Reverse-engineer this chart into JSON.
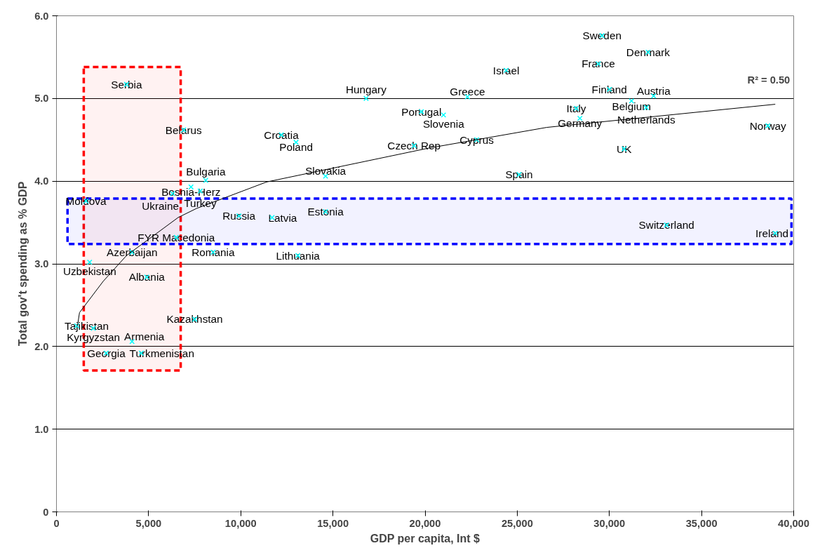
{
  "chart_data": {
    "type": "scatter",
    "xlabel": "GDP per capita, Int $",
    "ylabel": "Total gov't spending as % GDP",
    "xlim": [
      0,
      40000
    ],
    "ylim": [
      0,
      6
    ],
    "xticks": [
      0,
      {
        "value": 5000,
        "label": "5,000"
      },
      {
        "value": 10000,
        "label": "10,000"
      },
      {
        "value": 15000,
        "label": "15,000"
      },
      {
        "value": 20000,
        "label": "20,000"
      },
      {
        "value": 25000,
        "label": "25,000"
      },
      {
        "value": 30000,
        "label": "30,000"
      },
      {
        "value": 35000,
        "label": "35,000"
      },
      {
        "value": 40000,
        "label": "40,000"
      }
    ],
    "yticks": [
      0,
      {
        "value": 1,
        "label": "1.0"
      },
      {
        "value": 2,
        "label": "2.0"
      },
      {
        "value": 3,
        "label": "3.0"
      },
      {
        "value": 4,
        "label": "4.0"
      },
      {
        "value": 5,
        "label": "5.0"
      },
      {
        "value": 6,
        "label": "6.0"
      }
    ],
    "grid": "y",
    "marker": "cross",
    "series": [
      {
        "color": "#00ffff",
        "x": [
          3800,
          6900,
          8100,
          7300,
          7800,
          6300,
          1600,
          9900,
          6500,
          8500,
          4100,
          1800,
          4900,
          7500,
          1100,
          2000,
          4100,
          2700,
          4600,
          16800,
          22300,
          19800,
          21000,
          12200,
          13000,
          19400,
          22800,
          14600,
          25100,
          14600,
          11700,
          13100,
          29600,
          32100,
          29400,
          24400,
          30000,
          32400,
          31200,
          32000,
          28200,
          28400,
          38600,
          30800,
          33100,
          39000
        ],
        "values": [
          5.17,
          4.62,
          4.01,
          3.93,
          3.88,
          3.85,
          3.76,
          3.58,
          3.32,
          3.14,
          3.14,
          3.02,
          2.84,
          2.33,
          2.25,
          2.22,
          2.06,
          1.92,
          1.92,
          5.0,
          5.02,
          4.84,
          4.8,
          4.56,
          4.47,
          4.43,
          4.5,
          4.06,
          4.08,
          3.63,
          3.56,
          3.1,
          5.76,
          5.56,
          5.42,
          5.34,
          5.11,
          5.03,
          4.97,
          4.89,
          4.88,
          4.76,
          4.67,
          4.39,
          3.47,
          3.37
        ]
      },
      {
        "type": "line",
        "color": "#000000",
        "marker": "none",
        "x": [
          1140,
          1250,
          2540,
          3800,
          6600,
          7600,
          11400,
          20200,
          26600,
          39000
        ],
        "values": [
          2.25,
          2.41,
          2.79,
          3.1,
          3.56,
          3.67,
          3.99,
          4.4,
          4.65,
          4.93
        ]
      }
    ],
    "bands": [
      {
        "axis": "x",
        "from": 1480,
        "to": 6740,
        "color": "#ff0000"
      },
      {
        "axis": "y",
        "from": 3.24,
        "to": 3.79,
        "color": "#0000ff"
      }
    ],
    "annotations": [
      "R² = 0.50",
      {
        "text": "Serbia",
        "x": 3800,
        "y": 5.17
      },
      {
        "text": "Belarus",
        "x": 6900,
        "y": 4.62
      },
      {
        "text": "Bulgaria",
        "x": 8100,
        "y": 4.01
      },
      {
        "text": "Bosnia-Herz",
        "x": 7300,
        "y": 3.93
      },
      {
        "text": "Turkey",
        "x": 7800,
        "y": 3.88
      },
      {
        "text": "Ukraine",
        "x": 6300,
        "y": 3.85
      },
      {
        "text": "Moldova",
        "x": 1600,
        "y": 3.76
      },
      {
        "text": "Russia",
        "x": 9900,
        "y": 3.58
      },
      {
        "text": "FYR Macedonia",
        "x": 6500,
        "y": 3.32
      },
      {
        "text": "Romania",
        "x": 8500,
        "y": 3.14
      },
      {
        "text": "Azerbaijan",
        "x": 4100,
        "y": 3.14
      },
      {
        "text": "Uzbekistan",
        "x": 1800,
        "y": 3.02
      },
      {
        "text": "Albania",
        "x": 4900,
        "y": 2.84
      },
      {
        "text": "Kazakhstan",
        "x": 7500,
        "y": 2.33
      },
      {
        "text": "Tajikistan",
        "x": 1100,
        "y": 2.25
      },
      {
        "text": "Kyrgyzstan",
        "x": 2000,
        "y": 2.22
      },
      {
        "text": "Armenia",
        "x": 4100,
        "y": 2.06
      },
      {
        "text": "Georgia",
        "x": 2700,
        "y": 1.92
      },
      {
        "text": "Turkmenistan",
        "x": 4600,
        "y": 1.92
      },
      {
        "text": "Hungary",
        "x": 16800,
        "y": 5.0
      },
      {
        "text": "Greece",
        "x": 22300,
        "y": 5.02
      },
      {
        "text": "Portugal",
        "x": 19800,
        "y": 4.84
      },
      {
        "text": "Slovenia",
        "x": 21000,
        "y": 4.8
      },
      {
        "text": "Croatia",
        "x": 12200,
        "y": 4.56
      },
      {
        "text": "Poland",
        "x": 13000,
        "y": 4.47
      },
      {
        "text": "Czech Rep",
        "x": 19400,
        "y": 4.43
      },
      {
        "text": "Cyprus",
        "x": 22800,
        "y": 4.5
      },
      {
        "text": "Slovakia",
        "x": 14600,
        "y": 4.06
      },
      {
        "text": "Spain",
        "x": 25100,
        "y": 4.08
      },
      {
        "text": "Estonia",
        "x": 14600,
        "y": 3.63
      },
      {
        "text": "Latvia",
        "x": 11700,
        "y": 3.56
      },
      {
        "text": "Lithuania",
        "x": 13100,
        "y": 3.1
      },
      {
        "text": "Sweden",
        "x": 29600,
        "y": 5.76
      },
      {
        "text": "Denmark",
        "x": 32100,
        "y": 5.56
      },
      {
        "text": "France",
        "x": 29400,
        "y": 5.42
      },
      {
        "text": "Israel",
        "x": 24400,
        "y": 5.34
      },
      {
        "text": "Finland",
        "x": 30000,
        "y": 5.11
      },
      {
        "text": "Austria",
        "x": 32400,
        "y": 5.03
      },
      {
        "text": "Belgium",
        "x": 31200,
        "y": 4.97
      },
      {
        "text": "Netherlands",
        "x": 32000,
        "y": 4.89
      },
      {
        "text": "Italy",
        "x": 28200,
        "y": 4.88
      },
      {
        "text": "Germany",
        "x": 28400,
        "y": 4.76
      },
      {
        "text": "Norway",
        "x": 38600,
        "y": 4.67
      },
      {
        "text": "UK",
        "x": 30800,
        "y": 4.39
      },
      {
        "text": "Switzerland",
        "x": 33100,
        "y": 3.47
      },
      {
        "text": "Ireland",
        "x": 39000,
        "y": 3.37
      }
    ]
  }
}
